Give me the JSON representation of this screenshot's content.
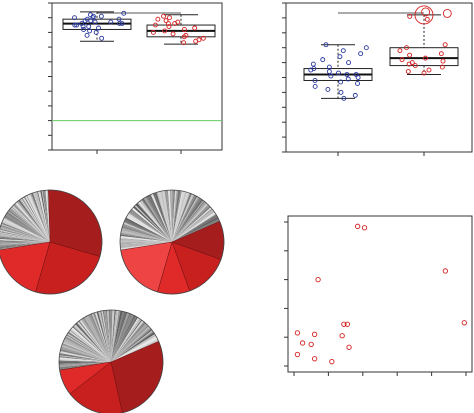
{
  "colors": {
    "group_a": "#2b3aa0",
    "group_b": "#d42020",
    "reference_line": "#66cc66",
    "axis": "#333333",
    "pie_reds": [
      "#7a1414",
      "#a51d1d",
      "#c81f1f",
      "#e02a2a",
      "#ee4444",
      "#f06a4a"
    ]
  },
  "chart_data": [
    {
      "type": "box",
      "panel": "top-left",
      "categories": [
        "",
        ""
      ],
      "ylim": [
        0,
        1
      ],
      "yticks": [
        0.0,
        0.1,
        0.2,
        0.3,
        0.4,
        0.5,
        0.6,
        0.7,
        0.8,
        0.9,
        1.0
      ],
      "reference_line": 0.2,
      "significance_bracket": true,
      "series": [
        {
          "box": {
            "min": 0.74,
            "q1": 0.82,
            "median": 0.86,
            "q3": 0.89,
            "max": 0.94
          },
          "points": [
            0.93,
            0.92,
            0.91,
            0.91,
            0.9,
            0.9,
            0.89,
            0.89,
            0.88,
            0.88,
            0.87,
            0.87,
            0.86,
            0.86,
            0.86,
            0.85,
            0.85,
            0.84,
            0.84,
            0.83,
            0.82,
            0.81,
            0.8,
            0.78,
            0.76
          ]
        },
        {
          "box": {
            "min": 0.72,
            "q1": 0.77,
            "median": 0.81,
            "q3": 0.85,
            "max": 0.92
          },
          "points": [
            0.91,
            0.9,
            0.89,
            0.88,
            0.87,
            0.86,
            0.86,
            0.85,
            0.84,
            0.83,
            0.82,
            0.81,
            0.8,
            0.79,
            0.78,
            0.77,
            0.76,
            0.75,
            0.74,
            0.73
          ]
        }
      ]
    },
    {
      "type": "box",
      "panel": "top-right",
      "categories": [
        "",
        ""
      ],
      "ylim": [
        0,
        1
      ],
      "yticks": [
        0.0,
        0.1,
        0.2,
        0.3,
        0.4,
        0.5,
        0.6,
        0.7,
        0.8,
        0.9,
        1.0
      ],
      "significance_bracket": true,
      "series": [
        {
          "box": {
            "min": 0.36,
            "q1": 0.48,
            "median": 0.52,
            "q3": 0.56,
            "max": 0.72
          },
          "points": [
            0.72,
            0.7,
            0.68,
            0.66,
            0.64,
            0.62,
            0.6,
            0.59,
            0.57,
            0.56,
            0.55,
            0.54,
            0.53,
            0.52,
            0.52,
            0.51,
            0.5,
            0.49,
            0.48,
            0.47,
            0.46,
            0.44,
            0.42,
            0.4,
            0.38,
            0.36
          ]
        },
        {
          "box": {
            "min": 0.52,
            "q1": 0.58,
            "median": 0.63,
            "q3": 0.7,
            "max": 0.92
          },
          "points": [
            0.94,
            0.93,
            0.91,
            0.89,
            0.72,
            0.7,
            0.68,
            0.66,
            0.65,
            0.63,
            0.62,
            0.61,
            0.6,
            0.59,
            0.58,
            0.57,
            0.55,
            0.54,
            0.53
          ],
          "highlighted_outliers": 2
        }
      ]
    },
    {
      "type": "pie",
      "panel": "pie-1",
      "highlight_slices": [
        30,
        25,
        18
      ],
      "remainder_slices": 90,
      "remainder_percent": 27
    },
    {
      "type": "pie",
      "panel": "pie-2",
      "highlight_slices": [
        12,
        14,
        10,
        18
      ],
      "remainder_slices": 90,
      "remainder_percent": 46
    },
    {
      "type": "pie",
      "panel": "pie-3",
      "highlight_slices": [
        28,
        18,
        8
      ],
      "remainder_slices": 100,
      "remainder_percent": 46
    },
    {
      "type": "scatter",
      "panel": "bottom-right",
      "xlim": [
        0,
        1
      ],
      "ylim": [
        0,
        1
      ],
      "xticks": [
        0.0,
        0.2,
        0.4,
        0.6,
        0.8,
        1.0
      ],
      "yticks": [
        0.0,
        0.2,
        0.4,
        0.6,
        0.8,
        1.0
      ],
      "points": [
        {
          "x": 0.37,
          "y": 0.97
        },
        {
          "x": 0.41,
          "y": 0.96
        },
        {
          "x": 0.88,
          "y": 0.66
        },
        {
          "x": 0.14,
          "y": 0.6
        },
        {
          "x": 0.99,
          "y": 0.3
        },
        {
          "x": 0.29,
          "y": 0.29
        },
        {
          "x": 0.31,
          "y": 0.29
        },
        {
          "x": 0.02,
          "y": 0.23
        },
        {
          "x": 0.12,
          "y": 0.22
        },
        {
          "x": 0.28,
          "y": 0.21
        },
        {
          "x": 0.05,
          "y": 0.16
        },
        {
          "x": 0.1,
          "y": 0.15
        },
        {
          "x": 0.32,
          "y": 0.13
        },
        {
          "x": 0.02,
          "y": 0.08
        },
        {
          "x": 0.12,
          "y": 0.05
        },
        {
          "x": 0.22,
          "y": 0.03
        }
      ]
    }
  ]
}
